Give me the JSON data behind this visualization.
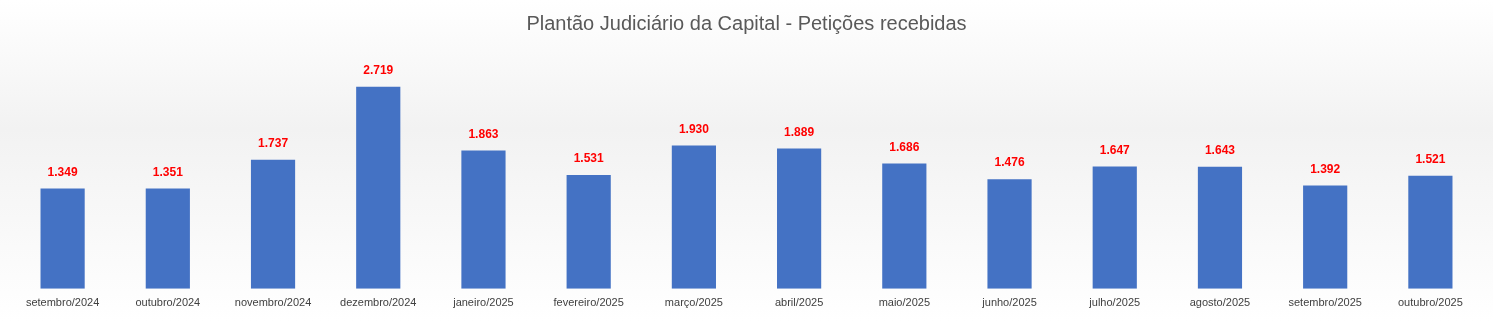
{
  "chart_data": {
    "type": "bar",
    "title": "Plantão Judiciário da Capital - Petições recebidas",
    "categories": [
      "setembro/2024",
      "outubro/2024",
      "novembro/2024",
      "dezembro/2024",
      "janeiro/2025",
      "fevereiro/2025",
      "março/2025",
      "abril/2025",
      "maio/2025",
      "junho/2025",
      "julho/2025",
      "agosto/2025",
      "setembro/2025",
      "outubro/2025"
    ],
    "values": [
      1349,
      1351,
      1737,
      2719,
      1863,
      1531,
      1930,
      1889,
      1686,
      1476,
      1647,
      1643,
      1392,
      1521
    ],
    "value_labels": [
      "1.349",
      "1.351",
      "1.737",
      "2.719",
      "1.863",
      "1.531",
      "1.930",
      "1.889",
      "1.686",
      "1.476",
      "1.647",
      "1.643",
      "1.392",
      "1.521"
    ],
    "color": "#4472c4",
    "tick_labels": "x",
    "grid": false,
    "legend": false
  }
}
